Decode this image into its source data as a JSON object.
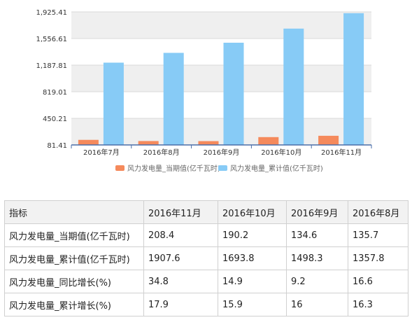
{
  "chart_data": {
    "type": "bar",
    "categories": [
      "2016年7月",
      "2016年8月",
      "2016年9月",
      "2016年10月",
      "2016年11月"
    ],
    "series": [
      {
        "name": "风力发电量_当期值(亿千瓦时)",
        "color": "#f58a5c",
        "values": [
          152,
          135.7,
          134.6,
          190.2,
          208.4
        ]
      },
      {
        "name": "风力发电量_累计值(亿千瓦时)",
        "color": "#87cbf6",
        "values": [
          1222,
          1357.8,
          1498.3,
          1693.8,
          1907.6
        ]
      }
    ],
    "yticks": [
      "1,925.41",
      "1,556.61",
      "1,187.81",
      "819.01",
      "450.21",
      "81.41"
    ],
    "ylim": [
      81.41,
      1925.41
    ],
    "grid": true,
    "legend_position": "bottom"
  },
  "table": {
    "headers": [
      "指标",
      "2016年11月",
      "2016年10月",
      "2016年9月",
      "2016年8月"
    ],
    "rows": [
      [
        "风力发电量_当期值(亿千瓦时)",
        "208.4",
        "190.2",
        "134.6",
        "135.7"
      ],
      [
        "风力发电量_累计值(亿千瓦时)",
        "1907.6",
        "1693.8",
        "1498.3",
        "1357.8"
      ],
      [
        "风力发电量_同比增长(%)",
        "34.8",
        "14.9",
        "9.2",
        "16.6"
      ],
      [
        "风力发电量_累计增长(%)",
        "17.9",
        "15.9",
        "16",
        "16.3"
      ]
    ]
  }
}
